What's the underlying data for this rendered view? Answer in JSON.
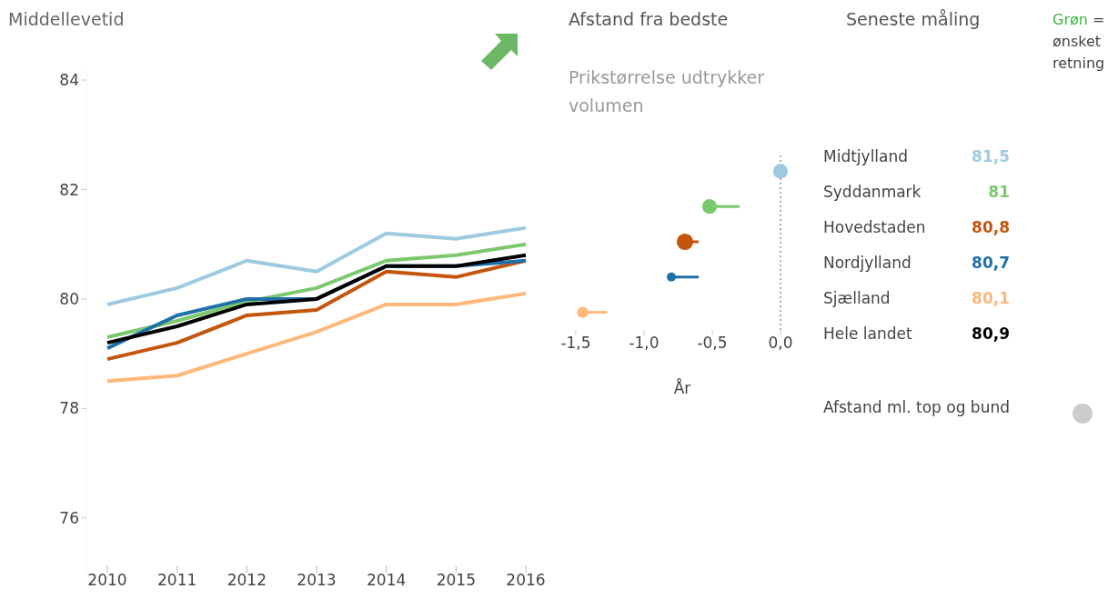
{
  "chart_data": [
    {
      "type": "line",
      "title": "Middellevetid",
      "categories": [
        "2010",
        "2011",
        "2012",
        "2013",
        "2014",
        "2015",
        "2016"
      ],
      "ylim": [
        75,
        84.2
      ],
      "yticks": [
        76,
        78,
        80,
        82,
        84
      ],
      "marker": "none",
      "series": [
        {
          "color": "#9ecae1",
          "values": [
            79.9,
            80.2,
            80.7,
            80.5,
            81.2,
            81.1,
            81.3
          ]
        },
        {
          "color": "#7cc86e",
          "values": [
            79.3,
            79.6,
            79.95,
            80.2,
            80.7,
            80.8,
            81.0
          ]
        },
        {
          "color": "#fdb87a",
          "values": [
            78.5,
            78.6,
            79.0,
            79.4,
            79.9,
            79.9,
            80.1
          ]
        },
        {
          "color": "#c4550d",
          "values": [
            78.9,
            79.2,
            79.7,
            79.8,
            80.5,
            80.4,
            80.7
          ]
        },
        {
          "color": "#1f6fa8",
          "values": [
            79.1,
            79.7,
            80.0,
            80.0,
            80.6,
            80.6,
            80.7
          ]
        },
        {
          "color": "#000000",
          "values": [
            79.2,
            79.5,
            79.9,
            80.0,
            80.6,
            80.6,
            80.8
          ]
        }
      ]
    },
    {
      "type": "bubble",
      "orientation": "horizontal",
      "title": "Afstand fra bedste",
      "subtitle": "Prikstørrelse udtrykker volumen",
      "xlabel": "År",
      "categories": [
        null,
        null,
        null,
        null,
        null
      ],
      "values": [
        0.0,
        -0.52,
        -0.7,
        -0.8,
        -1.45
      ],
      "colors": [
        "#9ecae1",
        "#7cc86e",
        "#c4550d",
        "#1f6fa8",
        "#fdb87a"
      ],
      "sizes": [
        0.8,
        0.8,
        1,
        0.3,
        0.45
      ],
      "errors": [
        null,
        [
          -0.52,
          -0.3
        ],
        [
          -0.7,
          -0.6
        ],
        [
          -0.8,
          -0.6
        ],
        [
          -1.45,
          -1.27
        ]
      ],
      "xlim": [
        -1.5,
        0
      ],
      "xticks": [
        {
          "value": -1.5,
          "label": "-1,5"
        },
        {
          "value": -1,
          "label": "-1,0"
        },
        {
          "value": -0.5,
          "label": "-0,5"
        },
        {
          "value": 0,
          "label": "0,0"
        }
      ],
      "tick_labels": "x",
      "ref_lines": [
        {
          "axis": "x",
          "value": 0,
          "line_style": "dotted",
          "color": "#555555"
        }
      ]
    },
    {
      "type": "other",
      "title": "Seneste måling",
      "categories": [
        "Midtjylland",
        "Syddanmark",
        "Hovedstaden",
        "Nordjylland",
        "Sjælland",
        "Hele landet"
      ],
      "value_labels": [
        "81,5",
        "81",
        "80,8",
        "80,7",
        "80,1",
        "80,9"
      ],
      "colors": [
        "#9ecae1",
        "#7cc86e",
        "#c4550d",
        "#1f6fa8",
        "#fdb87a",
        "#000000"
      ],
      "annotations": [
        "Grøn",
        "= ønsket retning",
        "Afstand ml. top og bund"
      ]
    }
  ]
}
